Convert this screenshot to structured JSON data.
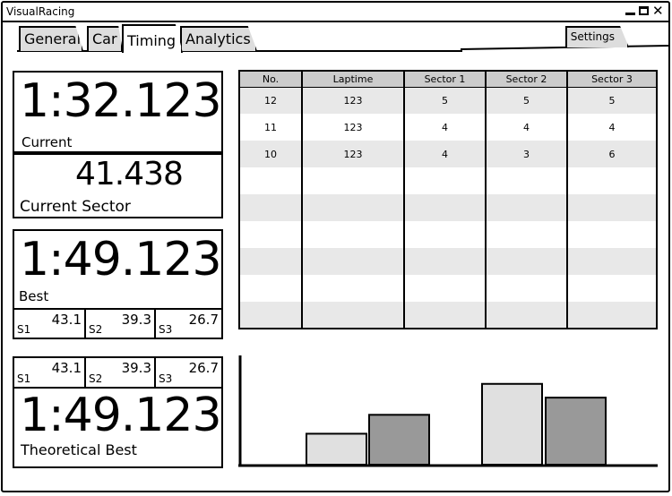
{
  "window": {
    "title": "VisualRacing"
  },
  "tabs": [
    {
      "label": "General"
    },
    {
      "label": "Car"
    },
    {
      "label": "Timing"
    },
    {
      "label": "Analytics"
    }
  ],
  "settings_tab": {
    "label": "Settings"
  },
  "current": {
    "time": "1:32.123",
    "label": "Current"
  },
  "current_sector": {
    "time": "41.438",
    "label": "Current Sector"
  },
  "best": {
    "time": "1:49.123",
    "label": "Best",
    "sectors": [
      {
        "name": "S1",
        "value": "43.1"
      },
      {
        "name": "S2",
        "value": "39.3"
      },
      {
        "name": "S3",
        "value": "26.7"
      }
    ]
  },
  "theoretical": {
    "time": "1:49.123",
    "label": "Theoretical Best",
    "sectors": [
      {
        "name": "S1",
        "value": "43.1"
      },
      {
        "name": "S2",
        "value": "39.3"
      },
      {
        "name": "S3",
        "value": "26.7"
      }
    ]
  },
  "laps_table": {
    "headers": [
      "No.",
      "Laptime",
      "Sector 1",
      "Sector 2",
      "Sector 3"
    ],
    "rows": [
      [
        "12",
        "123",
        "5",
        "5",
        "5"
      ],
      [
        "11",
        "123",
        "4",
        "4",
        "4"
      ],
      [
        "10",
        "123",
        "4",
        "3",
        "6"
      ],
      [
        "",
        "",
        "",
        "",
        ""
      ],
      [
        "",
        "",
        "",
        "",
        ""
      ],
      [
        "",
        "",
        "",
        "",
        ""
      ],
      [
        "",
        "",
        "",
        "",
        ""
      ],
      [
        "",
        "",
        "",
        "",
        ""
      ],
      [
        "",
        "",
        "",
        "",
        ""
      ]
    ]
  },
  "chart_data": {
    "type": "bar",
    "bars": [
      {
        "value": 0.36,
        "color": "#e0e0e0"
      },
      {
        "value": 0.58,
        "color": "#999999"
      },
      {
        "value": 0.94,
        "color": "#e0e0e0"
      },
      {
        "value": 0.78,
        "color": "#999999"
      }
    ],
    "ylim": [
      0,
      1
    ]
  }
}
